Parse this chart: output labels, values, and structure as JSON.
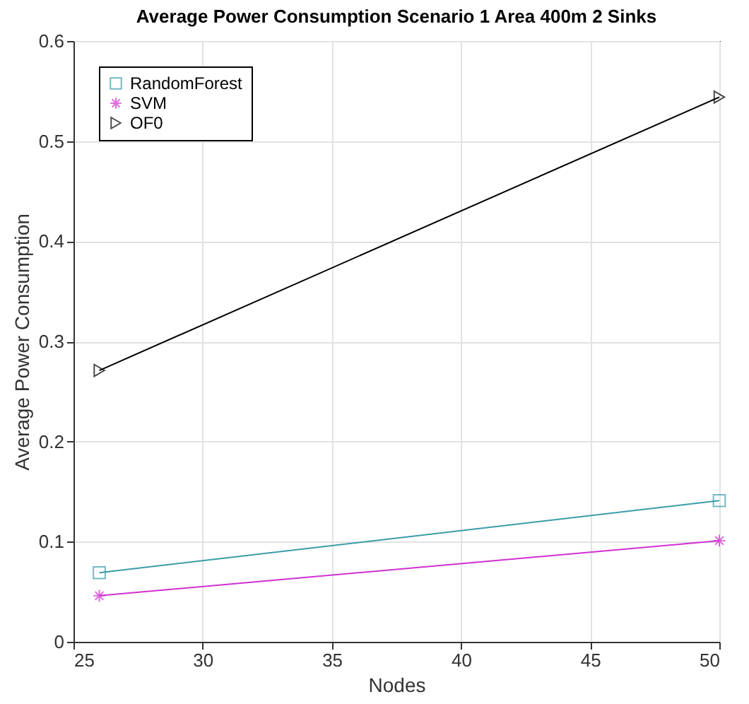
{
  "chart_data": {
    "type": "line",
    "title": "Average Power Consumption Scenario 1 Area 400m 2 Sinks",
    "xlabel": "Nodes",
    "ylabel": "Average Power Consumption",
    "x": [
      26,
      50
    ],
    "series": [
      {
        "name": "RandomForest",
        "color": "#3a9ca8",
        "marker": "square",
        "values": [
          0.069,
          0.141
        ]
      },
      {
        "name": "SVM",
        "color": "#d030d0",
        "marker": "cross",
        "values": [
          0.046,
          0.101
        ]
      },
      {
        "name": "OF0",
        "color": "#000000",
        "marker": "triangle",
        "values": [
          0.271,
          0.544
        ]
      }
    ],
    "xlim": [
      25,
      50
    ],
    "xticks": [
      25,
      30,
      35,
      40,
      45,
      50
    ],
    "ylim": [
      0,
      0.6
    ],
    "yticks": [
      0,
      0.1,
      0.2,
      0.3,
      0.4,
      0.5,
      0.6
    ],
    "grid": true,
    "legend": "top left",
    "line_style": "solid"
  }
}
